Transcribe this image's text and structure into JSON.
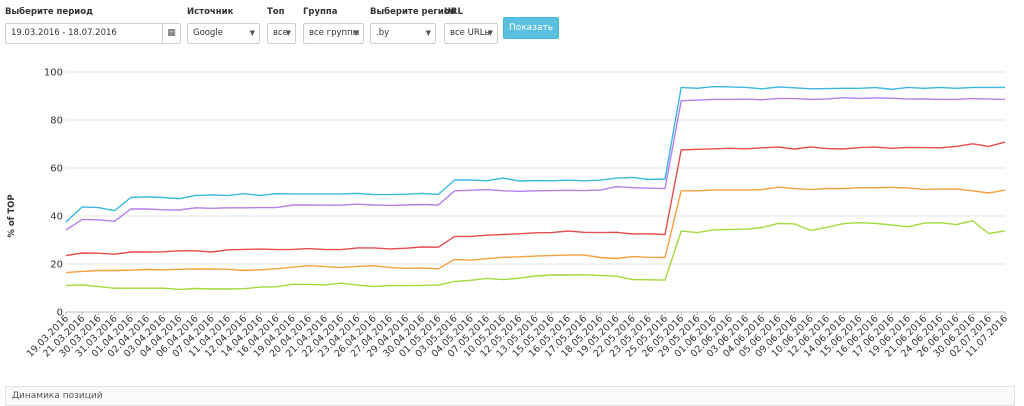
{
  "filters": {
    "period": {
      "label": "Выберите период",
      "value": "19.03.2016 - 18.07.2016"
    },
    "source": {
      "label": "Источник",
      "value": "Google"
    },
    "top": {
      "label": "Топ",
      "value": "все"
    },
    "group": {
      "label": "Группа",
      "value": "все группы"
    },
    "region": {
      "label": "Выберите регион",
      "value": ".by"
    },
    "url": {
      "label": "URL",
      "value": "все URLы"
    },
    "show_label": "Показать"
  },
  "icons": {
    "calendar": "calendar-icon",
    "dropdown": "caret-down-icon"
  },
  "chart_data": {
    "type": "line",
    "ylabel": "% of TOP",
    "ylim": [
      0,
      100
    ],
    "yticks": [
      0,
      20,
      40,
      60,
      80,
      100
    ],
    "grid": true,
    "categories": [
      "19.03.2016",
      "21.03.2016",
      "30.03.2016",
      "31.03.2016",
      "01.04.2016",
      "02.04.2016",
      "03.04.2016",
      "04.04.2016",
      "06.04.2016",
      "07.04.2016",
      "11.04.2016",
      "12.04.2016",
      "14.04.2016",
      "16.04.2016",
      "19.04.2016",
      "20.04.2016",
      "21.04.2016",
      "22.04.2016",
      "23.04.2016",
      "26.04.2016",
      "27.04.2016",
      "29.04.2016",
      "30.04.2016",
      "01.05.2016",
      "03.05.2016",
      "04.05.2016",
      "07.05.2016",
      "10.05.2016",
      "12.05.2016",
      "13.05.2016",
      "15.05.2016",
      "16.05.2016",
      "17.05.2016",
      "18.05.2016",
      "19.05.2016",
      "22.05.2016",
      "23.05.2016",
      "25.05.2016",
      "26.05.2016",
      "29.05.2016",
      "01.06.2016",
      "02.06.2016",
      "03.06.2016",
      "04.06.2016",
      "05.06.2016",
      "09.06.2016",
      "10.06.2016",
      "12.06.2016",
      "14.06.2016",
      "15.06.2016",
      "16.06.2016",
      "17.06.2016",
      "19.06.2016",
      "21.06.2016",
      "24.06.2016",
      "26.06.2016",
      "30.06.2016",
      "02.07.2016",
      "11.07.2016"
    ],
    "series": [
      {
        "color": "#39b8e0",
        "values": [
          37.5,
          43.8,
          43.5,
          42.2,
          47.7,
          48,
          47.7,
          47.2,
          48.6,
          48.8,
          48.5,
          49.3,
          48.6,
          49.3,
          49.2,
          49.2,
          49.2,
          49.2,
          49.4,
          48.9,
          48.9,
          49.1,
          49.4,
          49,
          55,
          55,
          54.7,
          55.8,
          54.6,
          54.8,
          54.7,
          54.9,
          54.7,
          54.9,
          55.8,
          56.1,
          55.2,
          55.4,
          93.6,
          93.2,
          93.9,
          93.8,
          93.6,
          93,
          93.8,
          93.4,
          93,
          93.1,
          93.2,
          93.2,
          93.5,
          92.8,
          93.6,
          93.2,
          93.6,
          93.2,
          93.6,
          93.6,
          93.6
        ]
      },
      {
        "color": "#b57fec",
        "values": [
          34.2,
          38.6,
          38.4,
          37.8,
          42.9,
          42.9,
          42.6,
          42.5,
          43.4,
          43.2,
          43.4,
          43.4,
          43.5,
          43.5,
          44.6,
          44.6,
          44.5,
          44.5,
          44.9,
          44.6,
          44.4,
          44.6,
          44.8,
          44.6,
          50.5,
          50.7,
          51,
          50.5,
          50.3,
          50.5,
          50.6,
          50.7,
          50.6,
          50.8,
          52.2,
          51.8,
          51.6,
          51.4,
          88,
          88.3,
          88.6,
          88.6,
          88.7,
          88.4,
          89,
          88.9,
          88.6,
          88.8,
          89.3,
          89,
          89.2,
          89.1,
          88.7,
          88.8,
          88.6,
          88.6,
          88.9,
          88.7,
          88.6
        ]
      },
      {
        "color": "#e84c4c",
        "values": [
          23.5,
          24.6,
          24.5,
          24.1,
          25,
          25,
          25.1,
          25.5,
          25.5,
          25,
          25.9,
          26.1,
          26.2,
          26,
          26.1,
          26.4,
          26,
          26,
          26.7,
          26.7,
          26.3,
          26.6,
          27.1,
          27,
          31.5,
          31.5,
          32,
          32.3,
          32.6,
          33,
          33.1,
          33.7,
          33.2,
          33.1,
          33.2,
          32.5,
          32.6,
          32.3,
          67.5,
          67.8,
          68,
          68.2,
          68,
          68.4,
          68.7,
          67.9,
          68.8,
          68.1,
          67.9,
          68.5,
          68.7,
          68.2,
          68.6,
          68.5,
          68.4,
          69,
          70.1,
          69,
          70.8
        ]
      },
      {
        "color": "#f5a03c",
        "values": [
          16.4,
          16.9,
          17.3,
          17.3,
          17.4,
          17.7,
          17.6,
          17.8,
          17.9,
          17.9,
          17.8,
          17.3,
          17.6,
          18,
          18.7,
          19.3,
          18.9,
          18.5,
          19,
          19.3,
          18.6,
          18.2,
          18.3,
          18,
          21.9,
          21.6,
          22.2,
          22.8,
          23,
          23.3,
          23.5,
          23.7,
          23.7,
          22.7,
          22.3,
          23.1,
          22.8,
          22.7,
          50.5,
          50.5,
          50.8,
          50.8,
          50.8,
          51,
          52,
          51.4,
          51,
          51.5,
          51.4,
          51.8,
          51.8,
          51.9,
          51.7,
          51.1,
          51.2,
          51.3,
          50.5,
          49.6,
          50.8
        ]
      },
      {
        "color": "#a4d93a",
        "values": [
          11,
          11.3,
          10.6,
          9.9,
          9.9,
          9.9,
          9.9,
          9.4,
          9.8,
          9.6,
          9.6,
          9.7,
          10.4,
          10.5,
          11.6,
          11.5,
          11.3,
          12,
          11.2,
          10.6,
          11,
          11,
          11.1,
          11.2,
          12.7,
          13.2,
          14,
          13.5,
          14.1,
          15,
          15.4,
          15.4,
          15.5,
          15.2,
          14.9,
          13.5,
          13.4,
          13.3,
          33.7,
          33.1,
          34.2,
          34.4,
          34.5,
          35.2,
          36.9,
          36.7,
          34,
          35.3,
          36.8,
          37.2,
          36.9,
          36.3,
          35.5,
          37,
          37.2,
          36.4,
          38,
          32.7,
          33.8
        ]
      }
    ]
  },
  "bottom_panel": {
    "title": "Динамика позиций"
  }
}
